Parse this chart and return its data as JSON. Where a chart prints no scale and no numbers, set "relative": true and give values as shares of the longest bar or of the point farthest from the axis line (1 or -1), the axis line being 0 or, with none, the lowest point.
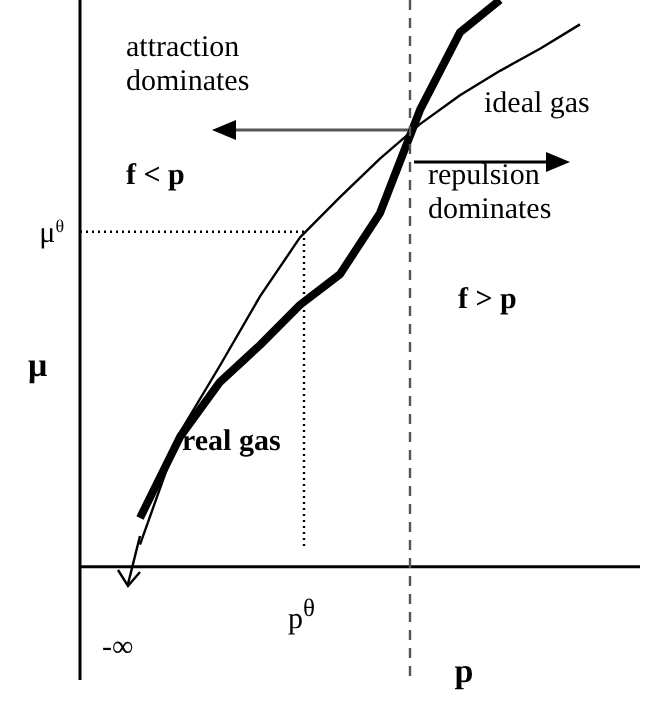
{
  "chart_data": {
    "type": "line",
    "relative": true,
    "xlabel": "p",
    "ylabel": "μ",
    "tick_labels": false,
    "marker": "none",
    "categories": [
      null,
      null,
      null,
      null,
      null,
      null,
      null,
      null,
      null,
      null,
      null,
      null,
      null,
      null
    ],
    "series": [
      {
        "name": "ideal gas",
        "color": "#000000",
        "values": [
          null,
          0.039,
          0.237,
          0.355,
          0.477,
          0.581,
          0.652,
          0.72,
          0.781,
          0.832,
          0.875,
          0.914,
          0.957,
          null
        ]
      },
      {
        "name": "real gas",
        "color": "#000000",
        "values": [
          null,
          0.086,
          0.229,
          0.326,
          0.391,
          0.462,
          0.516,
          0.624,
          0.806,
          0.943,
          1.0,
          null,
          null,
          null
        ]
      }
    ],
    "ref_lines": [
      {
        "axis": "y",
        "value": 0.591,
        "label": "μ$^{θ}$",
        "line_style": "dotted",
        "color": "#000000"
      }
    ],
    "annotations": [
      "attraction dominates",
      "repulsion dominates",
      "f < p",
      "f > p",
      "-∞",
      "p$^{θ}$"
    ]
  }
}
